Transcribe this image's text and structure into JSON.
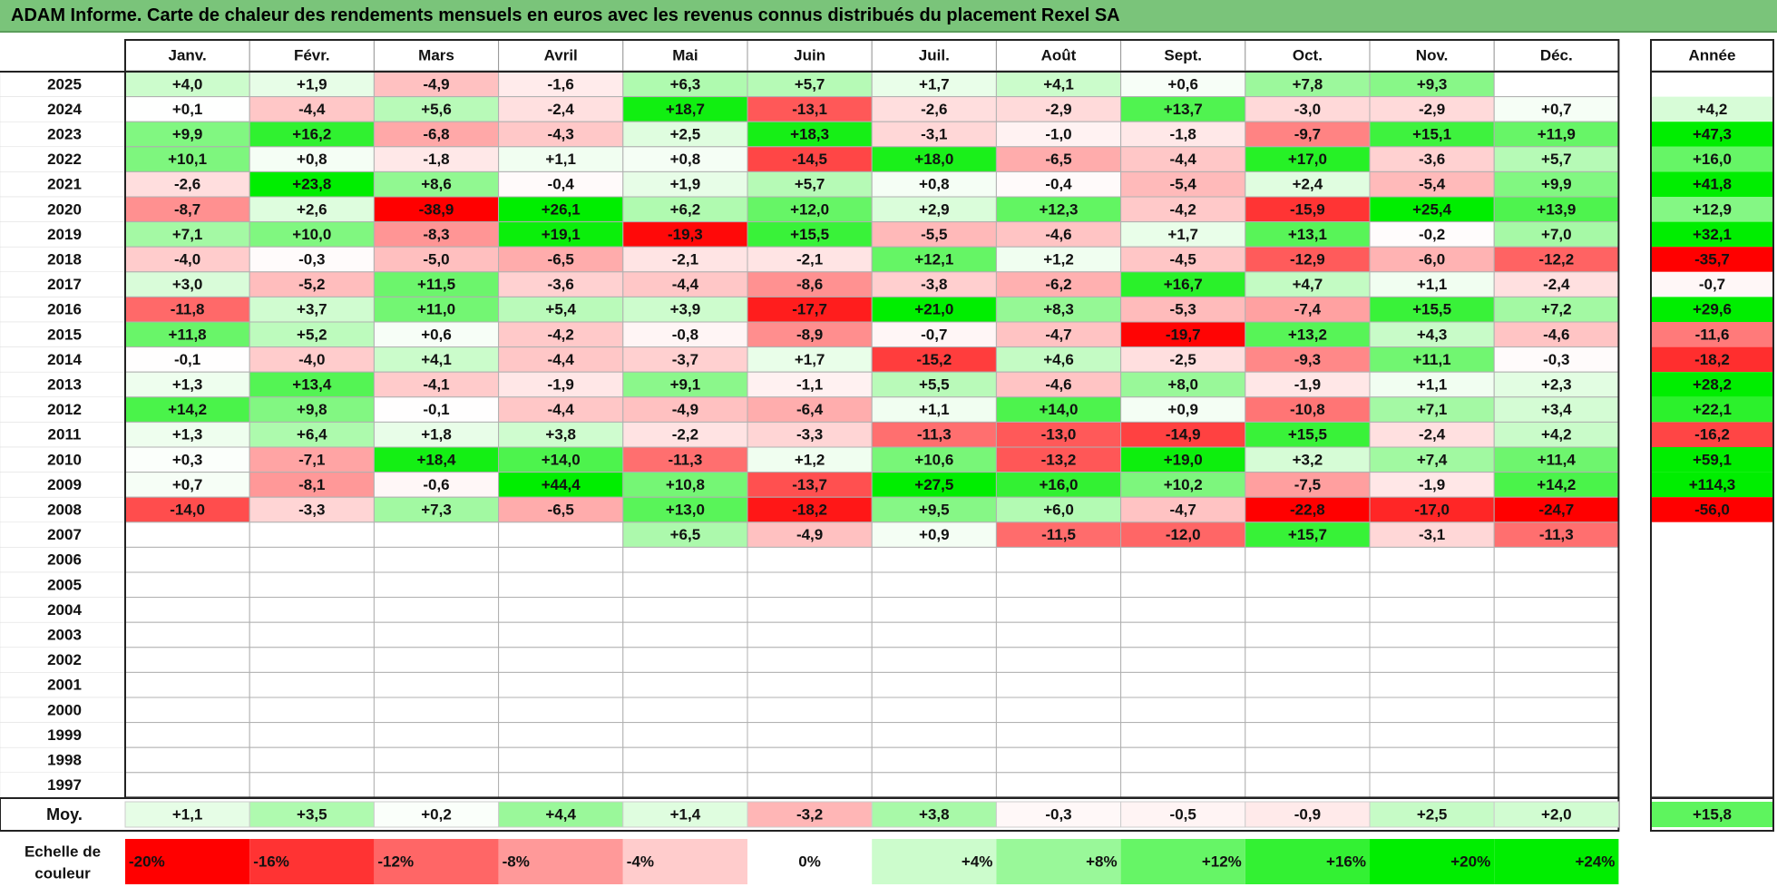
{
  "title": "ADAM Informe. Carte de chaleur des rendements mensuels en euros avec les revenus connus distribués du placement Rexel SA",
  "chart_data": {
    "type": "heatmap",
    "months": [
      "Janv.",
      "Févr.",
      "Mars",
      "Avril",
      "Mai",
      "Juin",
      "Juil.",
      "Août",
      "Sept.",
      "Oct.",
      "Nov.",
      "Déc."
    ],
    "year_header": "Année",
    "rows": [
      {
        "year": "2025",
        "values": [
          "+4,0",
          "+1,9",
          "-4,9",
          "-1,6",
          "+6,3",
          "+5,7",
          "+1,7",
          "+4,1",
          "+0,6",
          "+7,8",
          "+9,3",
          ""
        ],
        "annual": ""
      },
      {
        "year": "2024",
        "values": [
          "+0,1",
          "-4,4",
          "+5,6",
          "-2,4",
          "+18,7",
          "-13,1",
          "-2,6",
          "-2,9",
          "+13,7",
          "-3,0",
          "-2,9",
          "+0,7"
        ],
        "annual": "+4,2"
      },
      {
        "year": "2023",
        "values": [
          "+9,9",
          "+16,2",
          "-6,8",
          "-4,3",
          "+2,5",
          "+18,3",
          "-3,1",
          "-1,0",
          "-1,8",
          "-9,7",
          "+15,1",
          "+11,9"
        ],
        "annual": "+47,3"
      },
      {
        "year": "2022",
        "values": [
          "+10,1",
          "+0,8",
          "-1,8",
          "+1,1",
          "+0,8",
          "-14,5",
          "+18,0",
          "-6,5",
          "-4,4",
          "+17,0",
          "-3,6",
          "+5,7"
        ],
        "annual": "+16,0"
      },
      {
        "year": "2021",
        "values": [
          "-2,6",
          "+23,8",
          "+8,6",
          "-0,4",
          "+1,9",
          "+5,7",
          "+0,8",
          "-0,4",
          "-5,4",
          "+2,4",
          "-5,4",
          "+9,9"
        ],
        "annual": "+41,8"
      },
      {
        "year": "2020",
        "values": [
          "-8,7",
          "+2,6",
          "-38,9",
          "+26,1",
          "+6,2",
          "+12,0",
          "+2,9",
          "+12,3",
          "-4,2",
          "-15,9",
          "+25,4",
          "+13,9"
        ],
        "annual": "+12,9"
      },
      {
        "year": "2019",
        "values": [
          "+7,1",
          "+10,0",
          "-8,3",
          "+19,1",
          "-19,3",
          "+15,5",
          "-5,5",
          "-4,6",
          "+1,7",
          "+13,1",
          "-0,2",
          "+7,0"
        ],
        "annual": "+32,1"
      },
      {
        "year": "2018",
        "values": [
          "-4,0",
          "-0,3",
          "-5,0",
          "-6,5",
          "-2,1",
          "-2,1",
          "+12,1",
          "+1,2",
          "-4,5",
          "-12,9",
          "-6,0",
          "-12,2"
        ],
        "annual": "-35,7"
      },
      {
        "year": "2017",
        "values": [
          "+3,0",
          "-5,2",
          "+11,5",
          "-3,6",
          "-4,4",
          "-8,6",
          "-3,8",
          "-6,2",
          "+16,7",
          "+4,7",
          "+1,1",
          "-2,4"
        ],
        "annual": "-0,7"
      },
      {
        "year": "2016",
        "values": [
          "-11,8",
          "+3,7",
          "+11,0",
          "+5,4",
          "+3,9",
          "-17,7",
          "+21,0",
          "+8,3",
          "-5,3",
          "-7,4",
          "+15,5",
          "+7,2"
        ],
        "annual": "+29,6"
      },
      {
        "year": "2015",
        "values": [
          "+11,8",
          "+5,2",
          "+0,6",
          "-4,2",
          "-0,8",
          "-8,9",
          "-0,7",
          "-4,7",
          "-19,7",
          "+13,2",
          "+4,3",
          "-4,6"
        ],
        "annual": "-11,6"
      },
      {
        "year": "2014",
        "values": [
          "-0,1",
          "-4,0",
          "+4,1",
          "-4,4",
          "-3,7",
          "+1,7",
          "-15,2",
          "+4,6",
          "-2,5",
          "-9,3",
          "+11,1",
          "-0,3"
        ],
        "annual": "-18,2"
      },
      {
        "year": "2013",
        "values": [
          "+1,3",
          "+13,4",
          "-4,1",
          "-1,9",
          "+9,1",
          "-1,1",
          "+5,5",
          "-4,6",
          "+8,0",
          "-1,9",
          "+1,1",
          "+2,3"
        ],
        "annual": "+28,2"
      },
      {
        "year": "2012",
        "values": [
          "+14,2",
          "+9,8",
          "-0,1",
          "-4,4",
          "-4,9",
          "-6,4",
          "+1,1",
          "+14,0",
          "+0,9",
          "-10,8",
          "+7,1",
          "+3,4"
        ],
        "annual": "+22,1"
      },
      {
        "year": "2011",
        "values": [
          "+1,3",
          "+6,4",
          "+1,8",
          "+3,8",
          "-2,2",
          "-3,3",
          "-11,3",
          "-13,0",
          "-14,9",
          "+15,5",
          "-2,4",
          "+4,2"
        ],
        "annual": "-16,2"
      },
      {
        "year": "2010",
        "values": [
          "+0,3",
          "-7,1",
          "+18,4",
          "+14,0",
          "-11,3",
          "+1,2",
          "+10,6",
          "-13,2",
          "+19,0",
          "+3,2",
          "+7,4",
          "+11,4"
        ],
        "annual": "+59,1"
      },
      {
        "year": "2009",
        "values": [
          "+0,7",
          "-8,1",
          "-0,6",
          "+44,4",
          "+10,8",
          "-13,7",
          "+27,5",
          "+16,0",
          "+10,2",
          "-7,5",
          "-1,9",
          "+14,2"
        ],
        "annual": "+114,3"
      },
      {
        "year": "2008",
        "values": [
          "-14,0",
          "-3,3",
          "+7,3",
          "-6,5",
          "+13,0",
          "-18,2",
          "+9,5",
          "+6,0",
          "-4,7",
          "-22,8",
          "-17,0",
          "-24,7"
        ],
        "annual": "-56,0"
      },
      {
        "year": "2007",
        "values": [
          "",
          "",
          "",
          "",
          "+6,5",
          "-4,9",
          "+0,9",
          "-11,5",
          "-12,0",
          "+15,7",
          "-3,1",
          "-11,3"
        ],
        "annual": ""
      },
      {
        "year": "2006",
        "values": [
          "",
          "",
          "",
          "",
          "",
          "",
          "",
          "",
          "",
          "",
          "",
          ""
        ],
        "annual": ""
      },
      {
        "year": "2005",
        "values": [
          "",
          "",
          "",
          "",
          "",
          "",
          "",
          "",
          "",
          "",
          "",
          ""
        ],
        "annual": ""
      },
      {
        "year": "2004",
        "values": [
          "",
          "",
          "",
          "",
          "",
          "",
          "",
          "",
          "",
          "",
          "",
          ""
        ],
        "annual": ""
      },
      {
        "year": "2003",
        "values": [
          "",
          "",
          "",
          "",
          "",
          "",
          "",
          "",
          "",
          "",
          "",
          ""
        ],
        "annual": ""
      },
      {
        "year": "2002",
        "values": [
          "",
          "",
          "",
          "",
          "",
          "",
          "",
          "",
          "",
          "",
          "",
          ""
        ],
        "annual": ""
      },
      {
        "year": "2001",
        "values": [
          "",
          "",
          "",
          "",
          "",
          "",
          "",
          "",
          "",
          "",
          "",
          ""
        ],
        "annual": ""
      },
      {
        "year": "2000",
        "values": [
          "",
          "",
          "",
          "",
          "",
          "",
          "",
          "",
          "",
          "",
          "",
          ""
        ],
        "annual": ""
      },
      {
        "year": "1999",
        "values": [
          "",
          "",
          "",
          "",
          "",
          "",
          "",
          "",
          "",
          "",
          "",
          ""
        ],
        "annual": ""
      },
      {
        "year": "1998",
        "values": [
          "",
          "",
          "",
          "",
          "",
          "",
          "",
          "",
          "",
          "",
          "",
          ""
        ],
        "annual": ""
      },
      {
        "year": "1997",
        "values": [
          "",
          "",
          "",
          "",
          "",
          "",
          "",
          "",
          "",
          "",
          "",
          ""
        ],
        "annual": ""
      }
    ],
    "average": {
      "label": "Moy.",
      "values": [
        "+1,1",
        "+3,5",
        "+0,2",
        "+4,4",
        "+1,4",
        "-3,2",
        "+3,8",
        "-0,3",
        "-0,5",
        "-0,9",
        "+2,5",
        "+2,0"
      ],
      "annual": "+15,8"
    },
    "color_scale": {
      "label": "Echelle de couleur",
      "steps": [
        "-20%",
        "-16%",
        "-12%",
        "-8%",
        "-4%",
        "0%",
        "+4%",
        "+8%",
        "+12%",
        "+16%",
        "+20%",
        "+24%"
      ],
      "step_values": [
        -20,
        -16,
        -12,
        -8,
        -4,
        0,
        4,
        8,
        12,
        16,
        20,
        24
      ]
    },
    "colors": {
      "negative": "#ff0000",
      "positive": "#00ee00",
      "neutral": "#ffffff"
    }
  }
}
